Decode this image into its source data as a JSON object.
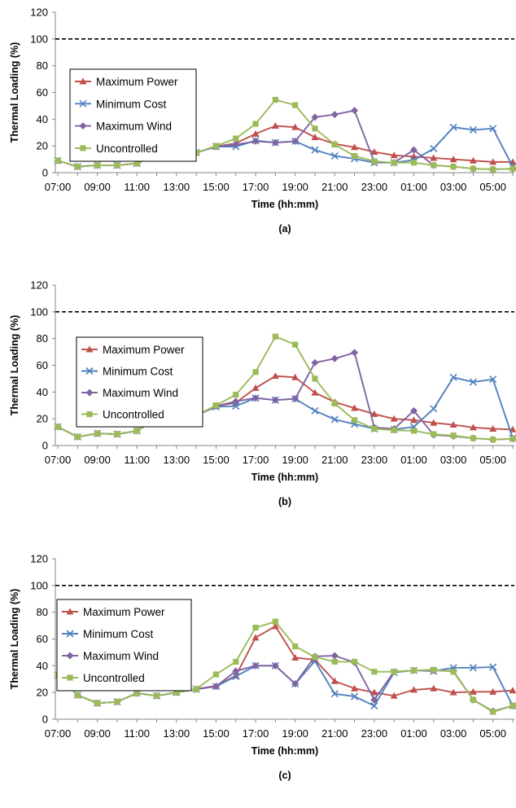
{
  "chart_data": [
    {
      "type": "line",
      "caption": "(a)",
      "xlabel": "Time (hh:mm)",
      "ylabel": "Thermal Loading (%)",
      "ylim": [
        0,
        120
      ],
      "yticks": [
        "0",
        "20",
        "40",
        "60",
        "80",
        "100",
        "120"
      ],
      "categories": [
        "07:00",
        "08:00",
        "09:00",
        "10:00",
        "11:00",
        "12:00",
        "13:00",
        "14:00",
        "15:00",
        "16:00",
        "17:00",
        "18:00",
        "19:00",
        "20:00",
        "21:00",
        "22:00",
        "23:00",
        "00:00",
        "01:00",
        "02:00",
        "03:00",
        "04:00",
        "05:00",
        "06:00"
      ],
      "xtick_labels": [
        "07:00",
        "09:00",
        "11:00",
        "13:00",
        "15:00",
        "17:00",
        "19:00",
        "21:00",
        "23:00",
        "01:00",
        "03:00",
        "05:00"
      ],
      "reference_line": 100,
      "legend_position": "left",
      "grid": false,
      "series": [
        {
          "name": "Maximum Power",
          "color": "#c0504d",
          "marker": "triangle",
          "values": [
            9,
            4.5,
            5.5,
            5.5,
            7,
            13.5,
            12.5,
            15,
            19.5,
            22,
            29,
            35,
            34,
            26.5,
            21.5,
            19,
            15.5,
            13,
            12,
            11,
            10,
            9,
            8,
            8
          ]
        },
        {
          "name": "Minimum Cost",
          "color": "#4f81bd",
          "marker": "x",
          "values": [
            9,
            4.5,
            5.5,
            5.5,
            7,
            13.5,
            12.5,
            15,
            19.5,
            19.5,
            24,
            22.5,
            23.5,
            17,
            12.5,
            10.5,
            7.5,
            7.5,
            9.5,
            18,
            34,
            32,
            33,
            4.5
          ]
        },
        {
          "name": "Maximum Wind",
          "color": "#8064a2",
          "marker": "diamond",
          "values": [
            9,
            4.5,
            5.5,
            5.5,
            7,
            13.5,
            12.5,
            15,
            19.5,
            21,
            23.5,
            22.5,
            23.5,
            41.5,
            43.5,
            46.5,
            8,
            7.5,
            17,
            5.5,
            4.5,
            3,
            2.5,
            3
          ]
        },
        {
          "name": "Uncontrolled",
          "color": "#9bbb59",
          "marker": "square",
          "values": [
            9,
            4.5,
            5.5,
            5.5,
            7,
            13.5,
            12.5,
            15,
            20,
            25.5,
            36.5,
            54.5,
            50.5,
            33,
            21,
            12.5,
            8.5,
            7.5,
            7.5,
            5.5,
            4.5,
            3,
            2.5,
            3
          ]
        }
      ]
    },
    {
      "type": "line",
      "caption": "(b)",
      "xlabel": "Time (hh:mm)",
      "ylabel": "Thermal Loading (%)",
      "ylim": [
        0,
        120
      ],
      "yticks": [
        "0",
        "20",
        "40",
        "60",
        "80",
        "100",
        "120"
      ],
      "categories": [
        "07:00",
        "08:00",
        "09:00",
        "10:00",
        "11:00",
        "12:00",
        "13:00",
        "14:00",
        "15:00",
        "16:00",
        "17:00",
        "18:00",
        "19:00",
        "20:00",
        "21:00",
        "22:00",
        "23:00",
        "00:00",
        "01:00",
        "02:00",
        "03:00",
        "04:00",
        "05:00",
        "06:00"
      ],
      "xtick_labels": [
        "07:00",
        "09:00",
        "11:00",
        "13:00",
        "15:00",
        "17:00",
        "19:00",
        "21:00",
        "23:00",
        "01:00",
        "03:00",
        "05:00"
      ],
      "reference_line": 100,
      "legend_position": "left",
      "grid": false,
      "series": [
        {
          "name": "Maximum Power",
          "color": "#c0504d",
          "marker": "triangle",
          "values": [
            14,
            6.5,
            9,
            8.5,
            11,
            20,
            19.5,
            22.5,
            29.5,
            32,
            43,
            52,
            51,
            39.5,
            32.5,
            28,
            23.5,
            20,
            19,
            17,
            15.5,
            13.5,
            12.5,
            12
          ]
        },
        {
          "name": "Minimum Cost",
          "color": "#4f81bd",
          "marker": "x",
          "values": [
            14,
            6.5,
            9,
            8.5,
            11,
            20,
            19.5,
            22.5,
            29,
            29.5,
            35.5,
            34,
            35,
            26,
            19.5,
            16,
            12.5,
            12,
            14,
            27.5,
            51,
            47.5,
            49.5,
            5.5
          ]
        },
        {
          "name": "Maximum Wind",
          "color": "#8064a2",
          "marker": "diamond",
          "values": [
            14,
            6.5,
            9,
            8.5,
            11,
            20,
            19.5,
            22.5,
            29.5,
            33,
            35.5,
            34,
            35,
            62,
            65,
            69.5,
            13.5,
            12.5,
            26,
            8,
            7,
            5.5,
            4.5,
            5
          ]
        },
        {
          "name": "Uncontrolled",
          "color": "#9bbb59",
          "marker": "square",
          "values": [
            14,
            6.5,
            9,
            8.5,
            11,
            20,
            19.5,
            22.5,
            30,
            38,
            55,
            81.5,
            75.5,
            50,
            31.5,
            19,
            12.5,
            11.5,
            11,
            8.5,
            7.5,
            5.5,
            4.5,
            5
          ]
        }
      ]
    },
    {
      "type": "line",
      "caption": "(c)",
      "xlabel": "Time (hh:mm)",
      "ylabel": "Thermal Loading (%)",
      "ylim": [
        0,
        120
      ],
      "yticks": [
        "0",
        "20",
        "40",
        "60",
        "80",
        "100",
        "120"
      ],
      "categories": [
        "07:00",
        "08:00",
        "09:00",
        "10:00",
        "11:00",
        "12:00",
        "13:00",
        "14:00",
        "15:00",
        "16:00",
        "17:00",
        "18:00",
        "19:00",
        "20:00",
        "21:00",
        "22:00",
        "23:00",
        "00:00",
        "01:00",
        "02:00",
        "03:00",
        "04:00",
        "05:00",
        "06:00"
      ],
      "xtick_labels": [
        "07:00",
        "09:00",
        "11:00",
        "13:00",
        "15:00",
        "17:00",
        "19:00",
        "21:00",
        "23:00",
        "01:00",
        "03:00",
        "05:00"
      ],
      "reference_line": 100,
      "legend_position": "left",
      "grid": false,
      "series": [
        {
          "name": "Maximum Power",
          "color": "#c0504d",
          "marker": "triangle",
          "values": [
            33,
            18,
            12,
            13,
            19.5,
            17.5,
            20,
            22.5,
            25,
            32.5,
            61,
            69.5,
            46,
            44.5,
            28.5,
            23,
            20,
            17.5,
            22,
            23,
            20,
            20.5,
            20.5,
            21.5
          ]
        },
        {
          "name": "Minimum Cost",
          "color": "#4f81bd",
          "marker": "x",
          "values": [
            33,
            18,
            12,
            13,
            19.5,
            17.5,
            20,
            22.5,
            24.5,
            32,
            40,
            40,
            26.5,
            43.5,
            19,
            17,
            10,
            35,
            36.5,
            36,
            38.5,
            38.5,
            39,
            10
          ]
        },
        {
          "name": "Maximum Wind",
          "color": "#8064a2",
          "marker": "diamond",
          "values": [
            33,
            18,
            12,
            13,
            19.5,
            17.5,
            20,
            22.5,
            24.5,
            36,
            40,
            40,
            26.5,
            47,
            47.5,
            42.5,
            14.5,
            35.5,
            36.5,
            36.5,
            36,
            14.5,
            6,
            10
          ]
        },
        {
          "name": "Uncontrolled",
          "color": "#9bbb59",
          "marker": "square",
          "values": [
            33,
            18,
            12,
            13,
            19.5,
            17.5,
            20,
            22.5,
            33.5,
            43,
            68.5,
            73,
            54.5,
            46.5,
            43,
            43,
            35.5,
            35.5,
            36.5,
            37,
            35.5,
            14.5,
            5.5,
            10
          ]
        }
      ]
    }
  ]
}
